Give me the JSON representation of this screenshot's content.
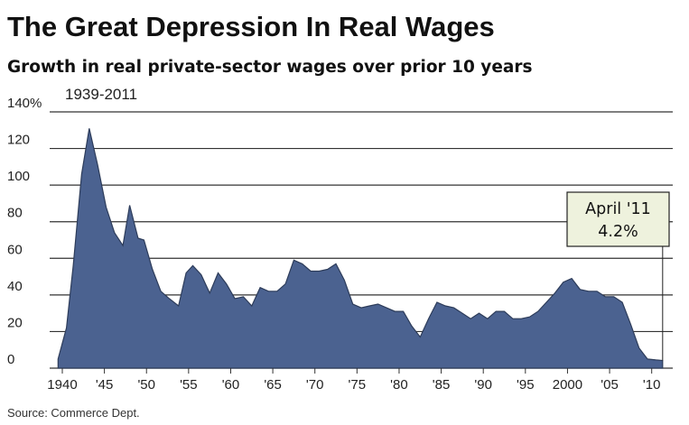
{
  "chart_data": {
    "type": "area",
    "title": "The Great Depression In Real Wages",
    "subtitle": "Growth in real private-sector wages over prior 10 years",
    "range_label": "1939-2011",
    "y_unit_label": "140%",
    "y_ticks": [
      "140%",
      "120",
      "100",
      "80",
      "60",
      "40",
      "20",
      "0"
    ],
    "y_tick_values": [
      140,
      120,
      100,
      80,
      60,
      40,
      20,
      0
    ],
    "x_ticks": [
      "1940",
      "'45",
      "'50",
      "'55",
      "'60",
      "'65",
      "'70",
      "'75",
      "'80",
      "'85",
      "'90",
      "'95",
      "2000",
      "'05",
      "'10"
    ],
    "x_tick_values": [
      1940,
      1945,
      1950,
      1955,
      1960,
      1965,
      1970,
      1975,
      1980,
      1985,
      1990,
      1995,
      2000,
      2005,
      2010
    ],
    "ylim": [
      0,
      140
    ],
    "xlim": [
      1938.5,
      2012.5
    ],
    "grid": true,
    "fill_color": "#4b6290",
    "annotation": {
      "label": "April '11",
      "value_text": "4.2%",
      "x": 2011.3,
      "y": 4.2
    },
    "source": "Source: Commerce Dept.",
    "x": [
      1939.5,
      1940.5,
      1941.3,
      1942.3,
      1943.2,
      1944.2,
      1945.2,
      1946.2,
      1947.2,
      1948.0,
      1949.0,
      1949.7,
      1950.7,
      1951.7,
      1952.7,
      1953.8,
      1954.7,
      1955.5,
      1956.5,
      1957.5,
      1958.5,
      1959.5,
      1960.5,
      1961.5,
      1962.5,
      1963.5,
      1964.5,
      1965.5,
      1966.5,
      1967.5,
      1968.5,
      1969.5,
      1970.5,
      1971.5,
      1972.5,
      1973.5,
      1974.5,
      1975.5,
      1976.5,
      1977.5,
      1978.5,
      1979.5,
      1980.5,
      1981.5,
      1982.5,
      1983.5,
      1984.5,
      1985.5,
      1986.5,
      1987.5,
      1988.5,
      1989.5,
      1990.5,
      1991.5,
      1992.5,
      1993.5,
      1994.5,
      1995.5,
      1996.5,
      1997.5,
      1998.5,
      1999.5,
      2000.5,
      2001.5,
      2002.5,
      2003.5,
      2004.5,
      2005.5,
      2006.5,
      2007.5,
      2008.5,
      2009.5,
      2010.5,
      2011.3
    ],
    "y": [
      5,
      22,
      56,
      106,
      131,
      111,
      88,
      74,
      67,
      89,
      71,
      70,
      54,
      42,
      38,
      34,
      52,
      56,
      51,
      41,
      52,
      46,
      38,
      39,
      34,
      44,
      42,
      42,
      46,
      59,
      57,
      53,
      53,
      54,
      57,
      48,
      35,
      33,
      34,
      35,
      33,
      31,
      31,
      23,
      17,
      27,
      36,
      34,
      33,
      30,
      27,
      30,
      27,
      31,
      31,
      27,
      27,
      28,
      31,
      36,
      41,
      47,
      49,
      43,
      42,
      42,
      39,
      39,
      36,
      24,
      11,
      5,
      4.5,
      4.2
    ]
  }
}
